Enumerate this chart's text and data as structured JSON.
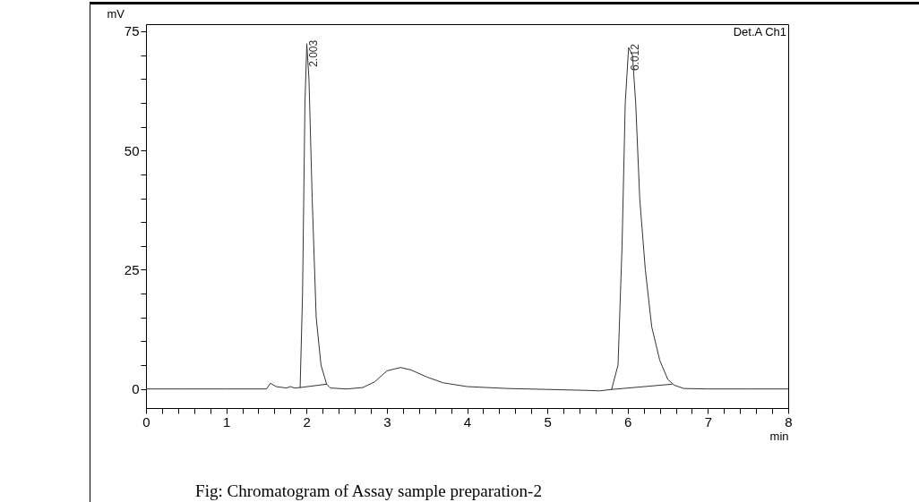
{
  "chart_data": {
    "type": "line",
    "title": "Fig: Chromatogram of Assay sample preparation-2",
    "xlabel": "min",
    "ylabel": "mV",
    "xlim": [
      0,
      8
    ],
    "ylim": [
      -4,
      76.5
    ],
    "marker": "none",
    "line_style": "solid",
    "grid": false,
    "xticks": [
      0,
      {
        "value": 0.2,
        "label": null
      },
      {
        "value": 0.4,
        "label": null
      },
      {
        "value": 0.6,
        "label": null
      },
      {
        "value": 0.8,
        "label": null
      },
      1,
      {
        "value": 1.2,
        "label": null
      },
      {
        "value": 1.4,
        "label": null
      },
      {
        "value": 1.6,
        "label": null
      },
      {
        "value": 1.8,
        "label": null
      },
      2,
      {
        "value": 2.2,
        "label": null
      },
      {
        "value": 2.4,
        "label": null
      },
      {
        "value": 2.6,
        "label": null
      },
      {
        "value": 2.8,
        "label": null
      },
      3,
      {
        "value": 3.2,
        "label": null
      },
      {
        "value": 3.4,
        "label": null
      },
      {
        "value": 3.6,
        "label": null
      },
      {
        "value": 3.8,
        "label": null
      },
      4,
      {
        "value": 4.2,
        "label": null
      },
      {
        "value": 4.4,
        "label": null
      },
      {
        "value": 4.6,
        "label": null
      },
      {
        "value": 4.8,
        "label": null
      },
      5,
      {
        "value": 5.2,
        "label": null
      },
      {
        "value": 5.4,
        "label": null
      },
      {
        "value": 5.6,
        "label": null
      },
      {
        "value": 5.8,
        "label": null
      },
      6,
      {
        "value": 6.2,
        "label": null
      },
      {
        "value": 6.4,
        "label": null
      },
      {
        "value": 6.6,
        "label": null
      },
      {
        "value": 6.8,
        "label": null
      },
      7,
      {
        "value": 7.2,
        "label": null
      },
      {
        "value": 7.4,
        "label": null
      },
      {
        "value": 7.6,
        "label": null
      },
      {
        "value": 7.8,
        "label": null
      },
      8
    ],
    "yticks": [
      0,
      {
        "value": 5,
        "label": null
      },
      {
        "value": 10,
        "label": null
      },
      {
        "value": 15,
        "label": null
      },
      {
        "value": 20,
        "label": null
      },
      25,
      {
        "value": 30,
        "label": null
      },
      {
        "value": 35,
        "label": null
      },
      {
        "value": 40,
        "label": null
      },
      {
        "value": 45,
        "label": null
      },
      50,
      {
        "value": 55,
        "label": null
      },
      {
        "value": 60,
        "label": null
      },
      {
        "value": 65,
        "label": null
      },
      {
        "value": 70,
        "label": null
      },
      75
    ],
    "series": [
      {
        "color": "#333333",
        "x": [
          0,
          0.5,
          1.0,
          1.5,
          1.55,
          1.62,
          1.75,
          1.8,
          1.85,
          1.92,
          1.95,
          1.98,
          2.003,
          2.03,
          2.07,
          2.12,
          2.18,
          2.25,
          2.3,
          2.5,
          2.7,
          2.85,
          3.0,
          3.17,
          3.3,
          3.5,
          3.7,
          4.0,
          4.5,
          5.0,
          5.5,
          5.65,
          5.8,
          5.88,
          5.93,
          5.97,
          6.012,
          6.06,
          6.1,
          6.15,
          6.22,
          6.3,
          6.4,
          6.5,
          6.58,
          6.7,
          7.0,
          7.5,
          8.0
        ],
        "values": [
          0,
          0,
          0,
          0,
          1.2,
          0.5,
          0.2,
          0.5,
          0.2,
          0.3,
          20,
          60,
          72.4,
          65,
          40,
          15,
          5,
          1.0,
          0.2,
          0,
          0.3,
          1.5,
          3.8,
          4.5,
          4.0,
          2.5,
          1.3,
          0.5,
          0.1,
          -0.1,
          -0.3,
          -0.4,
          -0.1,
          5,
          30,
          60,
          71.6,
          70,
          60,
          40,
          25,
          13,
          6,
          2,
          0.8,
          0.1,
          0,
          0,
          0
        ]
      },
      {
        "color": "#333333",
        "x": [
          1.92,
          2.25
        ],
        "values": [
          0.3,
          1.0
        ]
      },
      {
        "color": "#333333",
        "x": [
          5.8,
          6.55
        ],
        "values": [
          -0.1,
          1.0
        ]
      }
    ],
    "annotations": [
      "Det.A Ch1",
      {
        "text": "2.003",
        "x": 2.003,
        "y": 72.4
      },
      {
        "text": "6.012",
        "x": 6.012,
        "y": 71.6
      }
    ]
  }
}
